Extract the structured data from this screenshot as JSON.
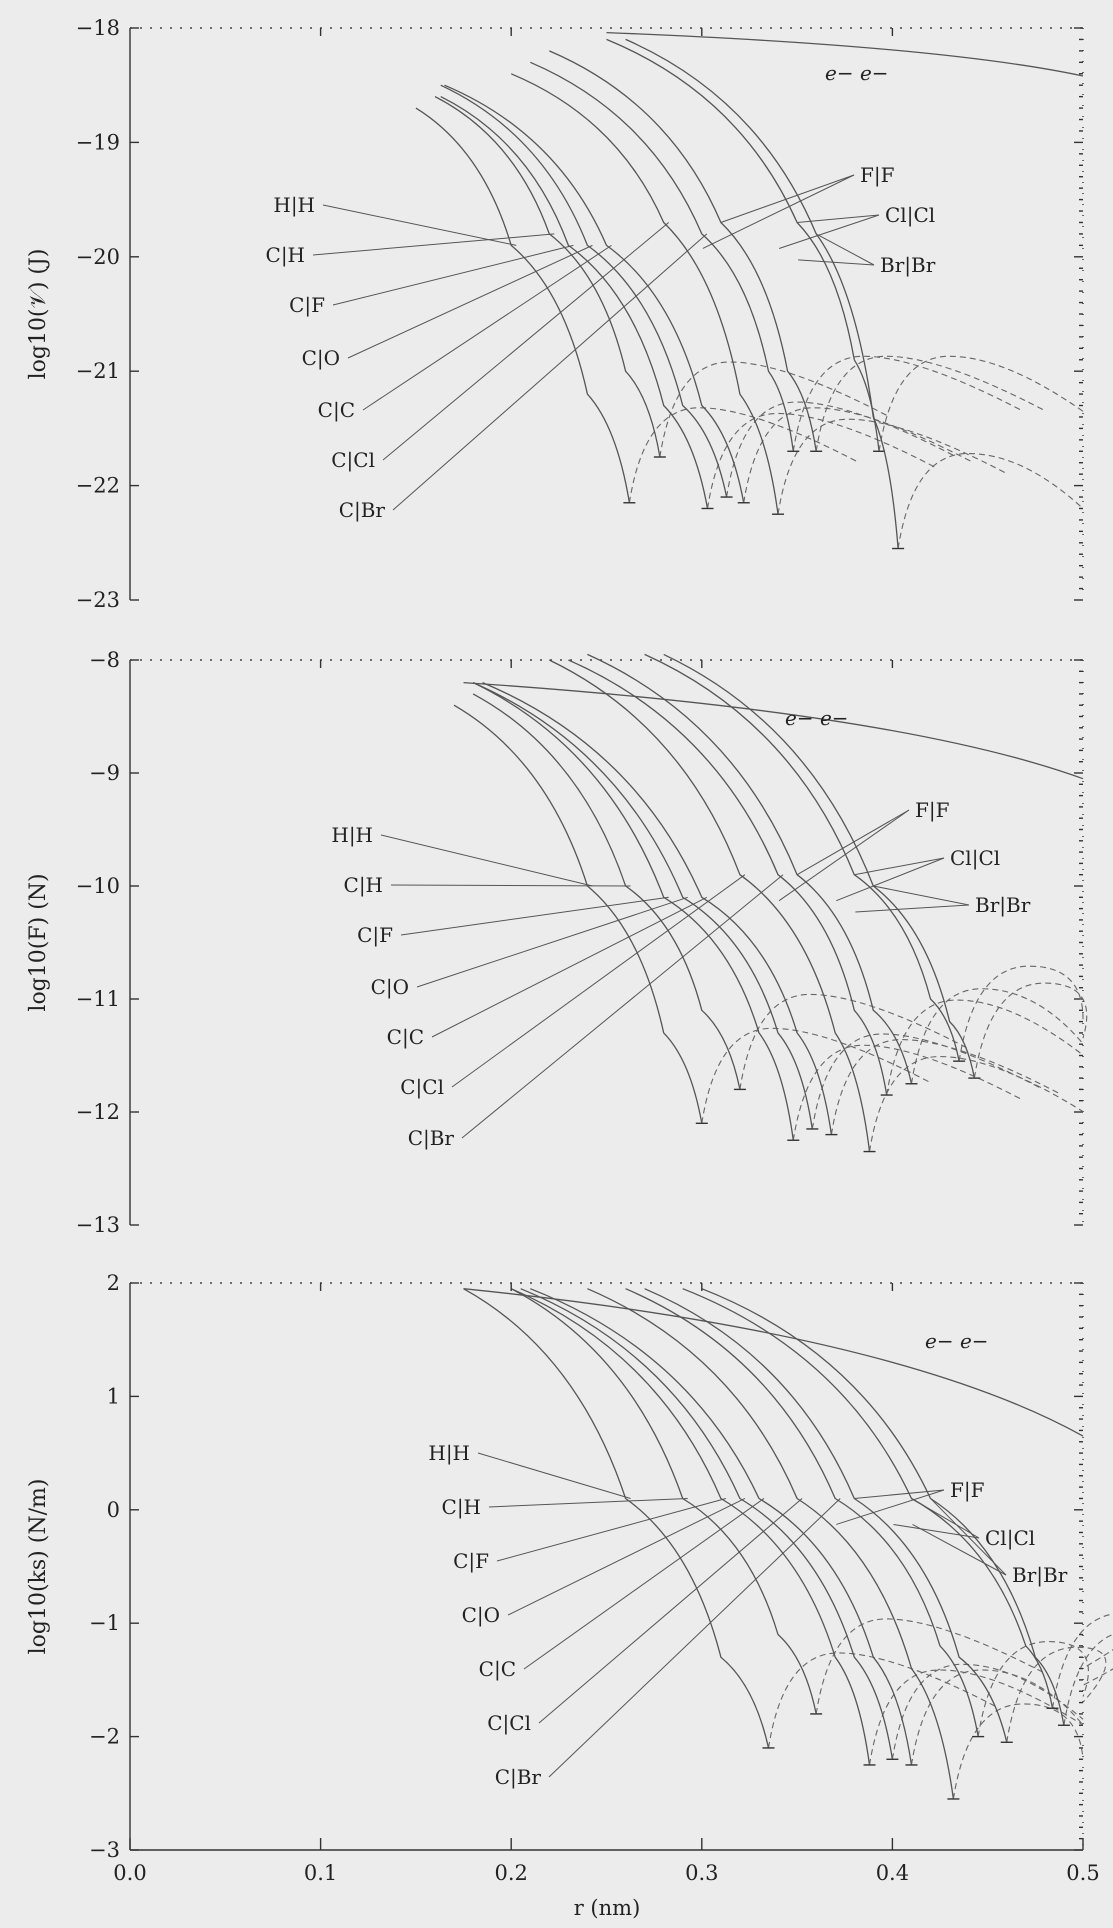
{
  "chart_data": [
    {
      "type": "line",
      "ylabel": "log10(𝒱) (J)",
      "ylim": [
        -23,
        -18
      ],
      "yticks": [
        -18,
        -19,
        -20,
        -21,
        -22,
        -23
      ],
      "xlim": [
        0.0,
        0.5
      ],
      "series": [
        {
          "name": "H|H",
          "x": [
            0.15,
            0.2,
            0.24,
            0.262
          ],
          "y": [
            -18.7,
            -19.9,
            -21.2,
            -22.15
          ]
        },
        {
          "name": "C|H",
          "x": [
            0.16,
            0.22,
            0.26,
            0.278
          ],
          "y": [
            -18.6,
            -19.8,
            -21.0,
            -21.75
          ]
        },
        {
          "name": "C|F",
          "x": [
            0.163,
            0.23,
            0.28,
            0.303
          ],
          "y": [
            -18.6,
            -19.9,
            -21.3,
            -22.2
          ]
        },
        {
          "name": "C|O",
          "x": [
            0.163,
            0.24,
            0.29,
            0.313
          ],
          "y": [
            -18.5,
            -19.9,
            -21.3,
            -22.1
          ]
        },
        {
          "name": "C|C",
          "x": [
            0.165,
            0.25,
            0.3,
            0.322
          ],
          "y": [
            -18.5,
            -19.9,
            -21.3,
            -22.15
          ]
        },
        {
          "name": "C|Cl",
          "x": [
            0.2,
            0.28,
            0.32,
            0.34
          ],
          "y": [
            -18.4,
            -19.7,
            -21.2,
            -22.25
          ]
        },
        {
          "name": "C|Br",
          "x": [
            0.21,
            0.3,
            0.335,
            0.348
          ],
          "y": [
            -18.3,
            -19.8,
            -21.0,
            -21.7
          ]
        },
        {
          "name": "F|F",
          "x": [
            0.22,
            0.31,
            0.345,
            0.36
          ],
          "y": [
            -18.2,
            -19.7,
            -21.0,
            -21.7
          ]
        },
        {
          "name": "Cl|Cl",
          "x": [
            0.25,
            0.35,
            0.38,
            0.393
          ],
          "y": [
            -18.1,
            -19.7,
            -20.9,
            -21.7
          ]
        },
        {
          "name": "Br|Br",
          "x": [
            0.26,
            0.36,
            0.39,
            0.403
          ],
          "y": [
            -18.1,
            -19.8,
            -21.4,
            -22.55
          ]
        },
        {
          "name": "e− e−",
          "x": [
            0.25,
            0.5
          ],
          "y": [
            -18.04,
            -18.42
          ]
        }
      ],
      "annotations": [
        "e− e−",
        "H|H",
        "C|H",
        "C|F",
        "C|O",
        "C|C",
        "C|Cl",
        "C|Br",
        "F|F",
        "Cl|Cl",
        "Br|Br"
      ]
    },
    {
      "type": "line",
      "ylabel": "log10(F) (N)",
      "ylim": [
        -13,
        -8
      ],
      "yticks": [
        -8,
        -9,
        -10,
        -11,
        -12,
        -13
      ],
      "xlim": [
        0.0,
        0.5
      ],
      "series": [
        {
          "name": "H|H",
          "x": [
            0.17,
            0.24,
            0.28,
            0.3
          ],
          "y": [
            -8.4,
            -10.0,
            -11.3,
            -12.1
          ]
        },
        {
          "name": "C|H",
          "x": [
            0.18,
            0.26,
            0.3,
            0.32
          ],
          "y": [
            -8.3,
            -10.0,
            -11.1,
            -11.8
          ]
        },
        {
          "name": "C|F",
          "x": [
            0.18,
            0.28,
            0.33,
            0.348
          ],
          "y": [
            -8.2,
            -10.1,
            -11.3,
            -12.25
          ]
        },
        {
          "name": "C|O",
          "x": [
            0.18,
            0.29,
            0.34,
            0.358
          ],
          "y": [
            -8.2,
            -10.1,
            -11.3,
            -12.15
          ]
        },
        {
          "name": "C|C",
          "x": [
            0.185,
            0.3,
            0.35,
            0.368
          ],
          "y": [
            -8.2,
            -10.1,
            -11.3,
            -12.2
          ]
        },
        {
          "name": "C|Cl",
          "x": [
            0.22,
            0.32,
            0.37,
            0.388
          ],
          "y": [
            -8.0,
            -9.9,
            -11.3,
            -12.35
          ]
        },
        {
          "name": "C|Br",
          "x": [
            0.23,
            0.34,
            0.38,
            0.397
          ],
          "y": [
            -8.0,
            -9.9,
            -11.1,
            -11.85
          ]
        },
        {
          "name": "F|F",
          "x": [
            0.24,
            0.35,
            0.39,
            0.41
          ],
          "y": [
            -7.95,
            -9.9,
            -11.1,
            -11.75
          ]
        },
        {
          "name": "Cl|Cl",
          "x": [
            0.27,
            0.38,
            0.42,
            0.435
          ],
          "y": [
            -7.95,
            -9.9,
            -11.0,
            -11.55
          ]
        },
        {
          "name": "Br|Br",
          "x": [
            0.28,
            0.39,
            0.43,
            0.443
          ],
          "y": [
            -7.95,
            -10.0,
            -11.2,
            -11.7
          ]
        },
        {
          "name": "e− e−",
          "x": [
            0.175,
            0.5
          ],
          "y": [
            -8.2,
            -9.05
          ]
        }
      ],
      "annotations": [
        "e− e−",
        "H|H",
        "C|H",
        "C|F",
        "C|O",
        "C|C",
        "C|Cl",
        "C|Br",
        "F|F",
        "Cl|Cl",
        "Br|Br"
      ]
    },
    {
      "type": "line",
      "ylabel": "log10(ks) (N/m)",
      "ylim": [
        -3,
        2
      ],
      "yticks": [
        2,
        1,
        0,
        -1,
        -2,
        -3
      ],
      "xlim": [
        0.0,
        0.5
      ],
      "xlabel": "r (nm)",
      "xticks": [
        0.0,
        0.1,
        0.2,
        0.3,
        0.4,
        0.5
      ],
      "series": [
        {
          "name": "H|H",
          "x": [
            0.175,
            0.26,
            0.31,
            0.335
          ],
          "y": [
            1.95,
            0.1,
            -1.3,
            -2.1
          ]
        },
        {
          "name": "C|H",
          "x": [
            0.2,
            0.29,
            0.34,
            0.36
          ],
          "y": [
            1.95,
            0.1,
            -1.1,
            -1.8
          ]
        },
        {
          "name": "C|F",
          "x": [
            0.2,
            0.31,
            0.37,
            0.388
          ],
          "y": [
            1.95,
            0.1,
            -1.3,
            -2.25
          ]
        },
        {
          "name": "C|O",
          "x": [
            0.205,
            0.32,
            0.38,
            0.4
          ],
          "y": [
            1.95,
            0.1,
            -1.3,
            -2.2
          ]
        },
        {
          "name": "C|C",
          "x": [
            0.21,
            0.33,
            0.39,
            0.41
          ],
          "y": [
            1.95,
            0.1,
            -1.3,
            -2.25
          ]
        },
        {
          "name": "C|Cl",
          "x": [
            0.24,
            0.35,
            0.41,
            0.432
          ],
          "y": [
            1.95,
            0.1,
            -1.4,
            -2.55
          ]
        },
        {
          "name": "C|Br",
          "x": [
            0.26,
            0.37,
            0.425,
            0.445
          ],
          "y": [
            1.95,
            0.1,
            -1.2,
            -2.0
          ]
        },
        {
          "name": "F|F",
          "x": [
            0.27,
            0.38,
            0.435,
            0.46
          ],
          "y": [
            1.95,
            0.1,
            -1.3,
            -2.05
          ]
        },
        {
          "name": "Cl|Cl",
          "x": [
            0.29,
            0.41,
            0.47,
            0.484
          ],
          "y": [
            1.95,
            0.1,
            -1.2,
            -1.75
          ]
        },
        {
          "name": "Br|Br",
          "x": [
            0.3,
            0.42,
            0.475,
            0.49
          ],
          "y": [
            1.95,
            0.1,
            -1.3,
            -1.9
          ]
        },
        {
          "name": "e− e−",
          "x": [
            0.175,
            0.5
          ],
          "y": [
            1.95,
            0.65
          ]
        }
      ],
      "annotations": [
        "e− e−",
        "H|H",
        "C|H",
        "C|F",
        "C|O",
        "C|C",
        "C|Cl",
        "C|Br",
        "F|F",
        "Cl|Cl",
        "Br|Br"
      ]
    }
  ]
}
